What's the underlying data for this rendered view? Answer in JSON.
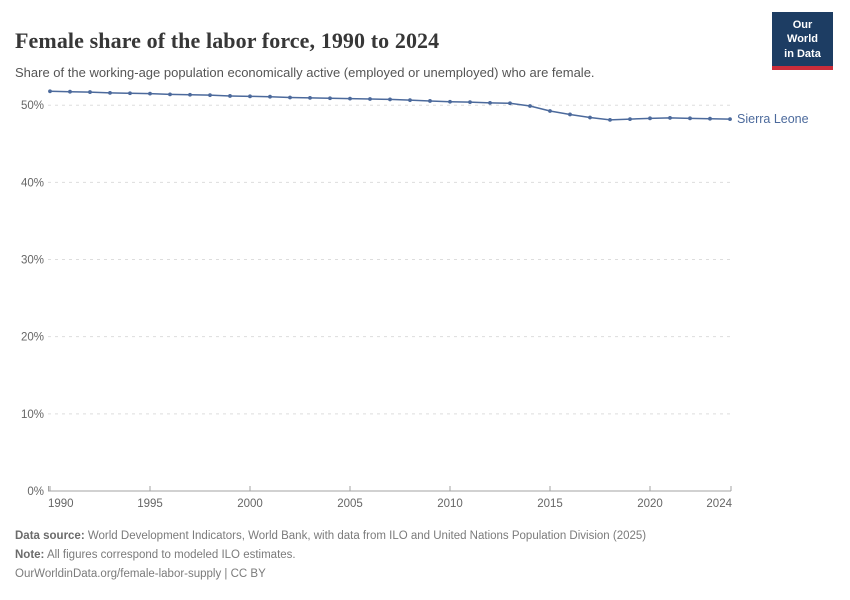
{
  "header": {
    "title": "Female share of the labor force, 1990 to 2024",
    "subtitle": "Share of the working-age population economically active (employed or unemployed) who are female.",
    "logo": {
      "line1": "Our World",
      "line2": "in Data"
    }
  },
  "chart_data": {
    "type": "line",
    "title": "Female share of the labor force, 1990 to 2024",
    "xlabel": "",
    "ylabel": "",
    "xlim": [
      1990,
      2024
    ],
    "ylim": [
      0,
      52.6
    ],
    "grid": "horizontal-dashed",
    "legend_position": "end-of-line-label",
    "x_tick_values": [
      1990,
      1995,
      2000,
      2005,
      2010,
      2015,
      2020,
      2024
    ],
    "x_tick_labels": [
      "1990",
      "1995",
      "2000",
      "2005",
      "2010",
      "2015",
      "2020",
      "2024"
    ],
    "y_tick_values": [
      0,
      10,
      20,
      30,
      40,
      50
    ],
    "y_tick_labels": [
      "0%",
      "10%",
      "20%",
      "30%",
      "40%",
      "50%"
    ],
    "series": [
      {
        "name": "Sierra Leone",
        "color": "#4c6a9c",
        "x": [
          1990,
          1991,
          1992,
          1993,
          1994,
          1995,
          1996,
          1997,
          1998,
          1999,
          2000,
          2001,
          2002,
          2003,
          2004,
          2005,
          2006,
          2007,
          2008,
          2009,
          2010,
          2011,
          2012,
          2013,
          2014,
          2015,
          2016,
          2017,
          2018,
          2019,
          2020,
          2021,
          2022,
          2023,
          2024
        ],
        "values": [
          51.8,
          51.75,
          51.7,
          51.6,
          51.55,
          51.5,
          51.4,
          51.35,
          51.3,
          51.2,
          51.15,
          51.1,
          51.0,
          50.95,
          50.9,
          50.85,
          50.8,
          50.75,
          50.65,
          50.55,
          50.45,
          50.4,
          50.3,
          50.25,
          49.9,
          49.25,
          48.8,
          48.4,
          48.1,
          48.2,
          48.3,
          48.35,
          48.3,
          48.25,
          48.2
        ]
      }
    ]
  },
  "footer": {
    "datasource_label": "Data source:",
    "datasource_text": " World Development Indicators, World Bank, with data from ILO and United Nations Population Division (2025)",
    "note_label": "Note:",
    "note_text": " All figures correspond to modeled ILO estimates.",
    "citation": "OurWorldinData.org/female-labor-supply | CC BY"
  },
  "colors": {
    "accent_line": "#4c6a9c",
    "logo_bg": "#1d3d63",
    "logo_red": "#cb2d3a",
    "grid": "#dddddd",
    "axis": "#a3a3a3",
    "tick_text": "#666666"
  }
}
